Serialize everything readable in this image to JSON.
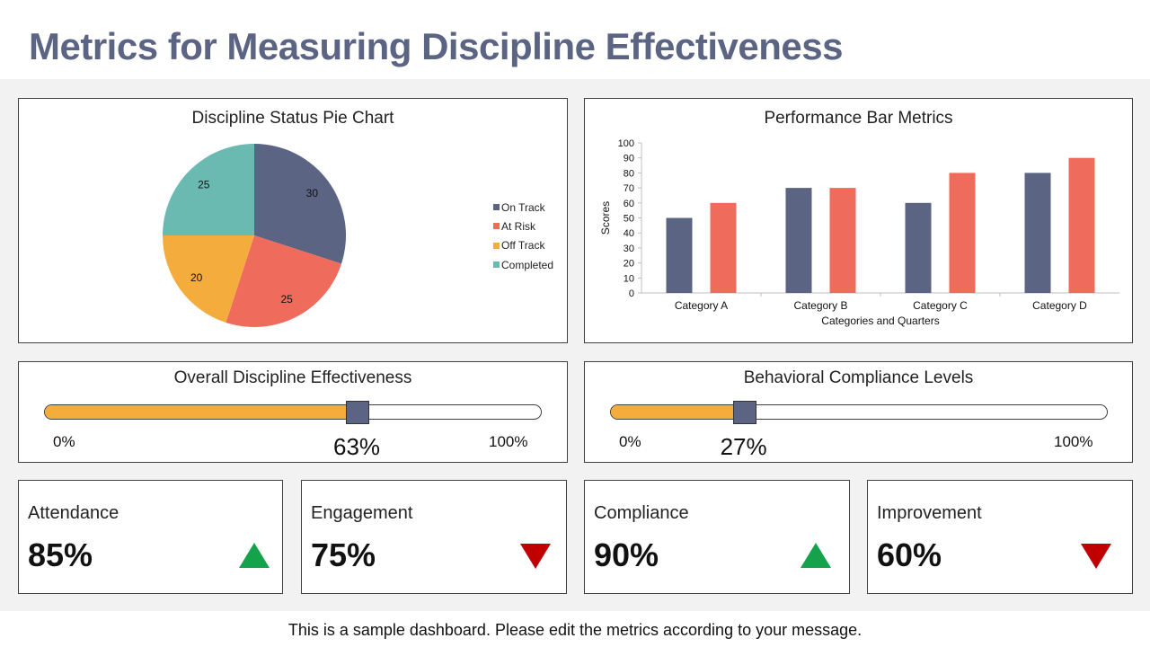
{
  "page": {
    "title": "Metrics for Measuring Discipline Effectiveness",
    "footer": "This is a sample dashboard. Please edit the metrics according to your message."
  },
  "chart_data": [
    {
      "type": "pie",
      "title": "Discipline Status Pie Chart",
      "labels": [
        "On Track",
        "At Risk",
        "Off Track",
        "Completed"
      ],
      "values": [
        30,
        25,
        20,
        25
      ],
      "colors": [
        "#5b6483",
        "#ef6b5b",
        "#f4ad3d",
        "#6bbab2"
      ],
      "legend": "right"
    },
    {
      "type": "bar",
      "title": "Performance Bar Metrics",
      "categories": [
        "Category A",
        "Category B",
        "Category C",
        "Category D"
      ],
      "series": [
        {
          "values": [
            50,
            70,
            60,
            80
          ],
          "color": "#5b6483"
        },
        {
          "values": [
            60,
            70,
            80,
            90
          ],
          "color": "#ef6b5b"
        }
      ],
      "xlabel": "Categories and Quarters",
      "ylabel": "Scores",
      "ylim": [
        0,
        100
      ],
      "yticks": [
        "0",
        "10",
        "20",
        "30",
        "40",
        "50",
        "60",
        "70",
        "80",
        "90",
        "100"
      ]
    }
  ],
  "sliders": [
    {
      "title": "Overall Discipline Effectiveness",
      "value": 63,
      "value_label": "63%",
      "min_label": "0%",
      "max_label": "100%"
    },
    {
      "title": "Behavioral Compliance Levels",
      "value": 27,
      "value_label": "27%",
      "min_label": "0%",
      "max_label": "100%"
    }
  ],
  "kpis": [
    {
      "label": "Attendance",
      "value": "85%",
      "trend": "up",
      "trend_icon": "triangle-up-icon"
    },
    {
      "label": "Engagement",
      "value": "75%",
      "trend": "down",
      "trend_icon": "triangle-down-icon"
    },
    {
      "label": "Compliance",
      "value": "90%",
      "trend": "up",
      "trend_icon": "triangle-up-icon"
    },
    {
      "label": "Improvement",
      "value": "60%",
      "trend": "down",
      "trend_icon": "triangle-down-icon"
    }
  ]
}
